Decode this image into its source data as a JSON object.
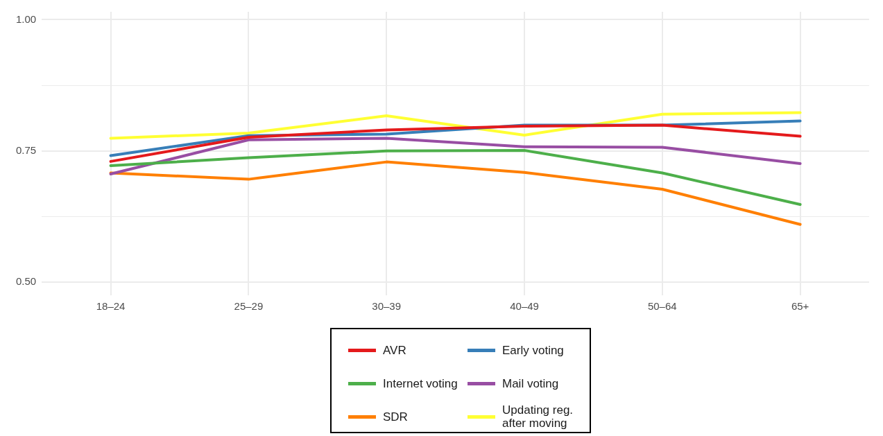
{
  "chart_data": {
    "type": "line",
    "categories": [
      "18–24",
      "25–29",
      "30–39",
      "40–49",
      "50–64",
      "65+"
    ],
    "series": [
      {
        "name": "AVR",
        "color": "#e41a1c",
        "values": [
          0.73,
          0.776,
          0.79,
          0.797,
          0.799,
          0.778
        ]
      },
      {
        "name": "Early voting",
        "color": "#377eb8",
        "values": [
          0.741,
          0.779,
          0.782,
          0.799,
          0.799,
          0.807
        ]
      },
      {
        "name": "Internet voting",
        "color": "#4daf4a",
        "values": [
          0.722,
          0.737,
          0.75,
          0.751,
          0.708,
          0.648
        ]
      },
      {
        "name": "Mail voting",
        "color": "#984ea3",
        "values": [
          0.706,
          0.771,
          0.774,
          0.758,
          0.757,
          0.726
        ]
      },
      {
        "name": "SDR",
        "color": "#ff7f00",
        "values": [
          0.708,
          0.696,
          0.729,
          0.709,
          0.677,
          0.61
        ]
      },
      {
        "name": "Updating reg. after moving",
        "color": "#ffff33",
        "values": [
          0.774,
          0.784,
          0.817,
          0.78,
          0.82,
          0.823
        ]
      }
    ],
    "ylim": [
      0.475,
      1.015
    ],
    "yticks": [
      {
        "value": 0.5,
        "label": "0.50"
      },
      {
        "value": 0.625,
        "label": null
      },
      {
        "value": 0.75,
        "label": "0.75"
      },
      {
        "value": 0.875,
        "label": null
      },
      {
        "value": 1.0,
        "label": "1.00"
      }
    ],
    "grid": true,
    "legend": "bottom",
    "marker": "none",
    "line_style": "solid"
  }
}
